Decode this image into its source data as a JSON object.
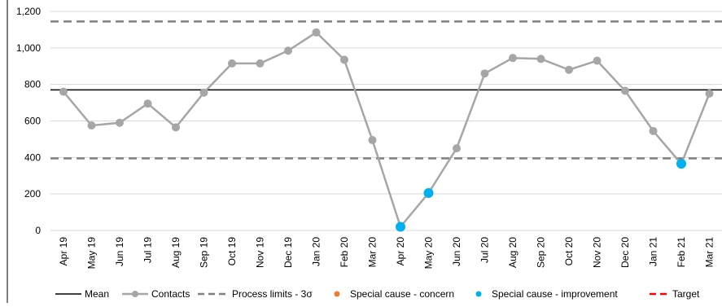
{
  "chart_data": {
    "type": "line",
    "categories": [
      "Apr 19",
      "May 19",
      "Jun 19",
      "Jul 19",
      "Aug 19",
      "Sep 19",
      "Oct 19",
      "Nov 19",
      "Dec 19",
      "Jan 20",
      "Feb 20",
      "Mar 20",
      "Apr 20",
      "May 20",
      "Jun 20",
      "Jul 20",
      "Aug 20",
      "Sep 20",
      "Oct 20",
      "Nov 20",
      "Dec 20",
      "Jan 21",
      "Feb 21",
      "Mar 21"
    ],
    "series": [
      {
        "name": "Contacts",
        "color": "#a6a6a6",
        "values": [
          760,
          575,
          590,
          695,
          565,
          755,
          915,
          915,
          985,
          1085,
          935,
          495,
          20,
          205,
          450,
          860,
          945,
          940,
          880,
          930,
          765,
          545,
          365,
          750
        ]
      }
    ],
    "special_cause_improvement_indices": [
      12,
      13,
      22
    ],
    "special_cause_improvement_color": "#00b0f0",
    "special_cause_concern_color": "#ed7d31",
    "mean": 770,
    "upper_process_limit": 1145,
    "lower_process_limit": 395,
    "ylim": [
      0,
      1200
    ],
    "yticks": [
      0,
      200,
      400,
      600,
      800,
      1000,
      1200
    ],
    "ytick_labels": [
      "0",
      "200",
      "400",
      "600",
      "800",
      "1,000",
      "1,200"
    ],
    "grid": true,
    "legend_position": "bottom",
    "legend": [
      {
        "key": "mean",
        "label": "Mean",
        "style": "solid-line",
        "color": "#000000"
      },
      {
        "key": "contacts",
        "label": "Contacts",
        "style": "line-marker",
        "color": "#a6a6a6"
      },
      {
        "key": "limits",
        "label": "Process limits - 3σ",
        "style": "dashed-line",
        "color": "#808080"
      },
      {
        "key": "concern",
        "label": "Special cause - concern",
        "style": "marker",
        "color": "#ed7d31"
      },
      {
        "key": "improvement",
        "label": "Special cause  - improvement",
        "style": "marker",
        "color": "#00b0f0"
      },
      {
        "key": "target",
        "label": "Target",
        "style": "dashed-line",
        "color": "#ff0000"
      }
    ]
  }
}
